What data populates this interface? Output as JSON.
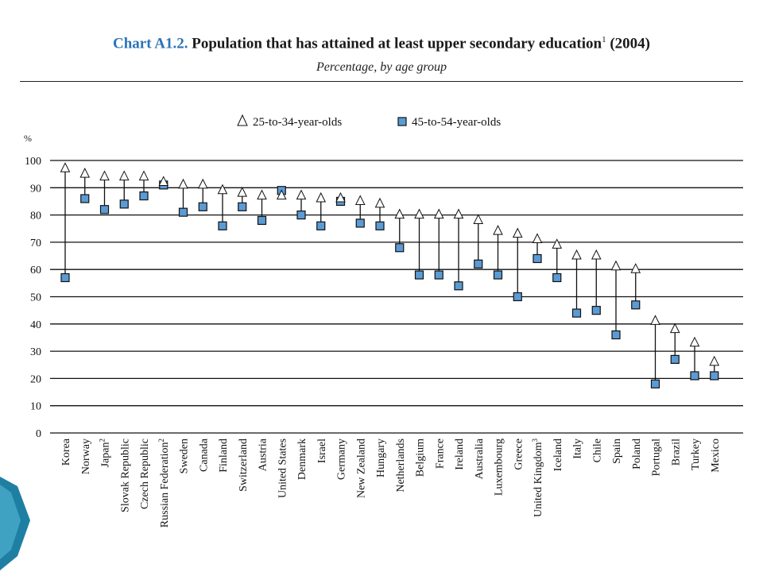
{
  "header": {
    "chart_number": "Chart A1.2.",
    "title": "Population that has attained at least upper secondary education",
    "title_sup": "1",
    "title_year": "(2004)",
    "subtitle": "Percentage, by age group"
  },
  "chart_data": {
    "type": "scatter",
    "ylabel": "%",
    "ylim": [
      0,
      100
    ],
    "yticks": [
      0,
      10,
      20,
      30,
      40,
      50,
      60,
      70,
      80,
      90,
      100
    ],
    "grid": true,
    "legend_position": "top-center",
    "categories": [
      {
        "name": "Korea",
        "sup": ""
      },
      {
        "name": "Norway",
        "sup": ""
      },
      {
        "name": "Japan",
        "sup": "2"
      },
      {
        "name": "Slovak Republic",
        "sup": ""
      },
      {
        "name": "Czech Republic",
        "sup": ""
      },
      {
        "name": "Russian Federation",
        "sup": "2"
      },
      {
        "name": "Sweden",
        "sup": ""
      },
      {
        "name": "Canada",
        "sup": ""
      },
      {
        "name": "Finland",
        "sup": ""
      },
      {
        "name": "Switzerland",
        "sup": ""
      },
      {
        "name": "Austria",
        "sup": ""
      },
      {
        "name": "United States",
        "sup": ""
      },
      {
        "name": "Denmark",
        "sup": ""
      },
      {
        "name": "Israel",
        "sup": ""
      },
      {
        "name": "Germany",
        "sup": ""
      },
      {
        "name": "New Zealand",
        "sup": ""
      },
      {
        "name": "Hungary",
        "sup": ""
      },
      {
        "name": "Netherlands",
        "sup": ""
      },
      {
        "name": "Belgium",
        "sup": ""
      },
      {
        "name": "France",
        "sup": ""
      },
      {
        "name": "Ireland",
        "sup": ""
      },
      {
        "name": "Australia",
        "sup": ""
      },
      {
        "name": "Luxembourg",
        "sup": ""
      },
      {
        "name": "Greece",
        "sup": ""
      },
      {
        "name": "United Kingdom",
        "sup": "3"
      },
      {
        "name": "Iceland",
        "sup": ""
      },
      {
        "name": "Italy",
        "sup": ""
      },
      {
        "name": "Chile",
        "sup": ""
      },
      {
        "name": "Spain",
        "sup": ""
      },
      {
        "name": "Poland",
        "sup": ""
      },
      {
        "name": "Portugal",
        "sup": ""
      },
      {
        "name": "Brazil",
        "sup": ""
      },
      {
        "name": "Turkey",
        "sup": ""
      },
      {
        "name": "Mexico",
        "sup": ""
      }
    ],
    "series": [
      {
        "name": "25-to-34-year-olds",
        "marker": "triangle",
        "values": [
          97,
          95,
          94,
          94,
          94,
          92,
          91,
          91,
          89,
          88,
          87,
          87,
          87,
          86,
          86,
          85,
          84,
          80,
          80,
          80,
          80,
          78,
          74,
          73,
          71,
          69,
          65,
          65,
          61,
          60,
          41,
          38,
          33,
          26
        ]
      },
      {
        "name": "45-to-54-year-olds",
        "marker": "square",
        "values": [
          57,
          86,
          82,
          84,
          87,
          91,
          81,
          83,
          76,
          83,
          78,
          89,
          80,
          76,
          85,
          77,
          76,
          68,
          58,
          58,
          54,
          62,
          58,
          50,
          64,
          57,
          44,
          45,
          36,
          47,
          18,
          27,
          21,
          21
        ]
      }
    ]
  },
  "colors": {
    "square_fill": "#5b9bd5",
    "title_accent": "#2a73b8",
    "decor": "#1f7fa3"
  }
}
